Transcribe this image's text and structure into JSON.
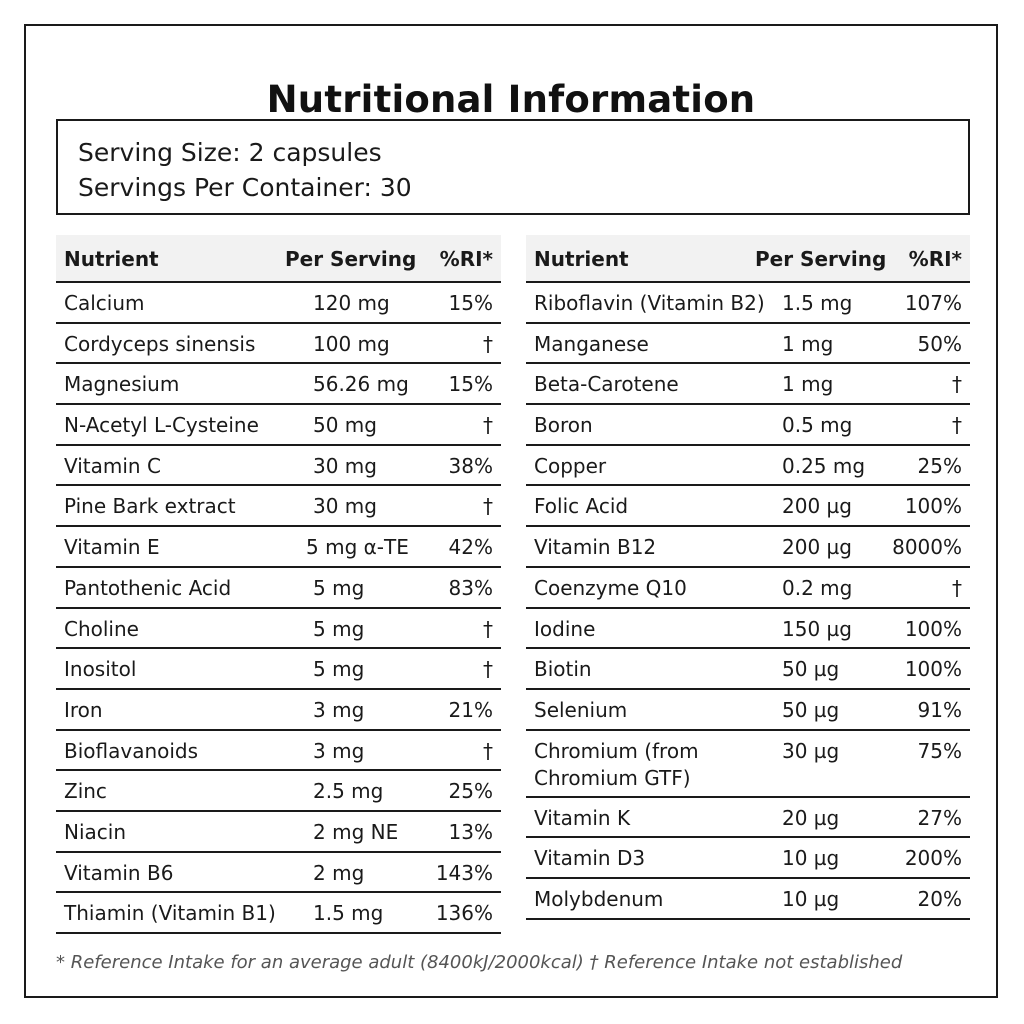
{
  "title": "Nutritional Information",
  "serving": {
    "size": "Serving Size: 2 capsules",
    "per_container": "Servings Per Container: 30"
  },
  "headers": {
    "nutrient": "Nutrient",
    "per_serving": "Per Serving",
    "ri": "%RI*"
  },
  "left_rows": [
    {
      "name": "Calcium",
      "amount": "120 mg",
      "ri": "15%"
    },
    {
      "name": "Cordyceps sinensis",
      "amount": "100 mg",
      "ri": "†"
    },
    {
      "name": "Magnesium",
      "amount": "56.26 mg",
      "ri": "15%"
    },
    {
      "name": "N-Acetyl L-Cysteine",
      "amount": "50 mg",
      "ri": "†"
    },
    {
      "name": "Vitamin C",
      "amount": "30 mg",
      "ri": "38%"
    },
    {
      "name": "Pine Bark extract",
      "amount": "30 mg",
      "ri": "†"
    },
    {
      "name": "Vitamin E",
      "amount": "5 mg α-TE",
      "ri": "42%"
    },
    {
      "name": "Pantothenic Acid",
      "amount": "5 mg",
      "ri": "83%"
    },
    {
      "name": "Choline",
      "amount": "5 mg",
      "ri": "†"
    },
    {
      "name": "Inositol",
      "amount": "5 mg",
      "ri": "†"
    },
    {
      "name": "Iron",
      "amount": "3 mg",
      "ri": "21%"
    },
    {
      "name": "Bioflavanoids",
      "amount": "3 mg",
      "ri": "†"
    },
    {
      "name": "Zinc",
      "amount": "2.5 mg",
      "ri": "25%"
    },
    {
      "name": "Niacin",
      "amount": "2 mg NE",
      "ri": "13%"
    },
    {
      "name": "Vitamin B6",
      "amount": "2 mg",
      "ri": "143%"
    },
    {
      "name": "Thiamin (Vitamin B1)",
      "amount": "1.5 mg",
      "ri": "136%"
    }
  ],
  "right_rows": [
    {
      "name": "Riboflavin (Vitamin B2)",
      "amount": "1.5 mg",
      "ri": "107%"
    },
    {
      "name": "Manganese",
      "amount": "1 mg",
      "ri": "50%"
    },
    {
      "name": "Beta-Carotene",
      "amount": "1 mg",
      "ri": "†"
    },
    {
      "name": "Boron",
      "amount": "0.5 mg",
      "ri": "†"
    },
    {
      "name": "Copper",
      "amount": "0.25 mg",
      "ri": "25%"
    },
    {
      "name": "Folic Acid",
      "amount": "200 µg",
      "ri": "100%"
    },
    {
      "name": "Vitamin B12",
      "amount": "200 µg",
      "ri": "8000%"
    },
    {
      "name": "Coenzyme Q10",
      "amount": "0.2 mg",
      "ri": "†"
    },
    {
      "name": "Iodine",
      "amount": "150 µg",
      "ri": "100%"
    },
    {
      "name": "Biotin",
      "amount": "50 µg",
      "ri": "100%"
    },
    {
      "name": "Selenium",
      "amount": "50 µg",
      "ri": "91%"
    },
    {
      "name": "Chromium (from Chromium GTF)",
      "amount": "30 µg",
      "ri": "75%"
    },
    {
      "name": "Vitamin K",
      "amount": "20 µg",
      "ri": "27%"
    },
    {
      "name": "Vitamin D3",
      "amount": "10 µg",
      "ri": "200%"
    },
    {
      "name": "Molybdenum",
      "amount": "10 µg",
      "ri": "20%"
    }
  ],
  "footnote": "* Reference Intake for an average adult (8400kJ/2000kcal) † Reference Intake not established"
}
